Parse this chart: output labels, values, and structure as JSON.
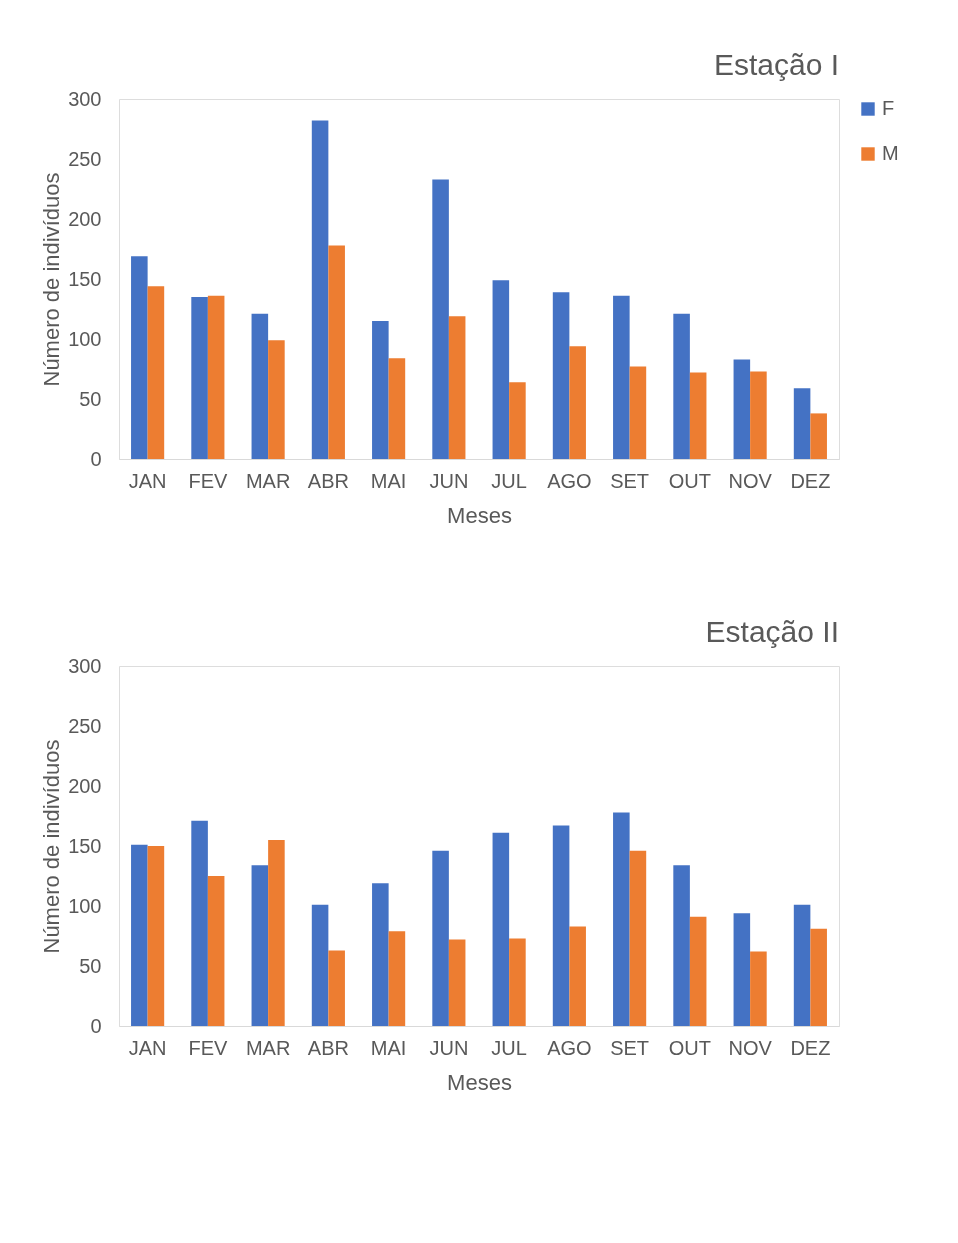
{
  "chart_data": [
    {
      "type": "bar",
      "title": "Estação I",
      "xlabel": "Meses",
      "ylabel": "Número de indivíduos",
      "categories": [
        "JAN",
        "FEV",
        "MAR",
        "ABR",
        "MAI",
        "JUN",
        "JUL",
        "AGO",
        "SET",
        "OUT",
        "NOV",
        "DEZ"
      ],
      "series": [
        {
          "name": "F",
          "color": "#4472c4",
          "values": [
            169,
            135,
            121,
            282,
            115,
            233,
            149,
            139,
            136,
            121,
            83,
            59
          ]
        },
        {
          "name": "M",
          "color": "#ed7d31",
          "values": [
            144,
            136,
            99,
            178,
            84,
            119,
            64,
            94,
            77,
            72,
            73,
            38
          ]
        }
      ],
      "ylim": [
        0,
        300
      ],
      "yticks": [
        0,
        50,
        100,
        150,
        200,
        250,
        300
      ],
      "grid": false,
      "legend": "right"
    },
    {
      "type": "bar",
      "title": "Estação II",
      "xlabel": "Meses",
      "ylabel": "Número de indivíduos",
      "categories": [
        "JAN",
        "FEV",
        "MAR",
        "ABR",
        "MAI",
        "JUN",
        "JUL",
        "AGO",
        "SET",
        "OUT",
        "NOV",
        "DEZ"
      ],
      "series": [
        {
          "name": "F",
          "color": "#4472c4",
          "values": [
            151,
            171,
            134,
            101,
            119,
            146,
            161,
            167,
            178,
            134,
            94,
            101
          ]
        },
        {
          "name": "M",
          "color": "#ed7d31",
          "values": [
            150,
            125,
            155,
            63,
            79,
            72,
            73,
            83,
            146,
            91,
            62,
            81
          ]
        }
      ],
      "ylim": [
        0,
        300
      ],
      "yticks": [
        0,
        50,
        100,
        150,
        200,
        250,
        300
      ],
      "grid": false,
      "legend": "right"
    }
  ]
}
